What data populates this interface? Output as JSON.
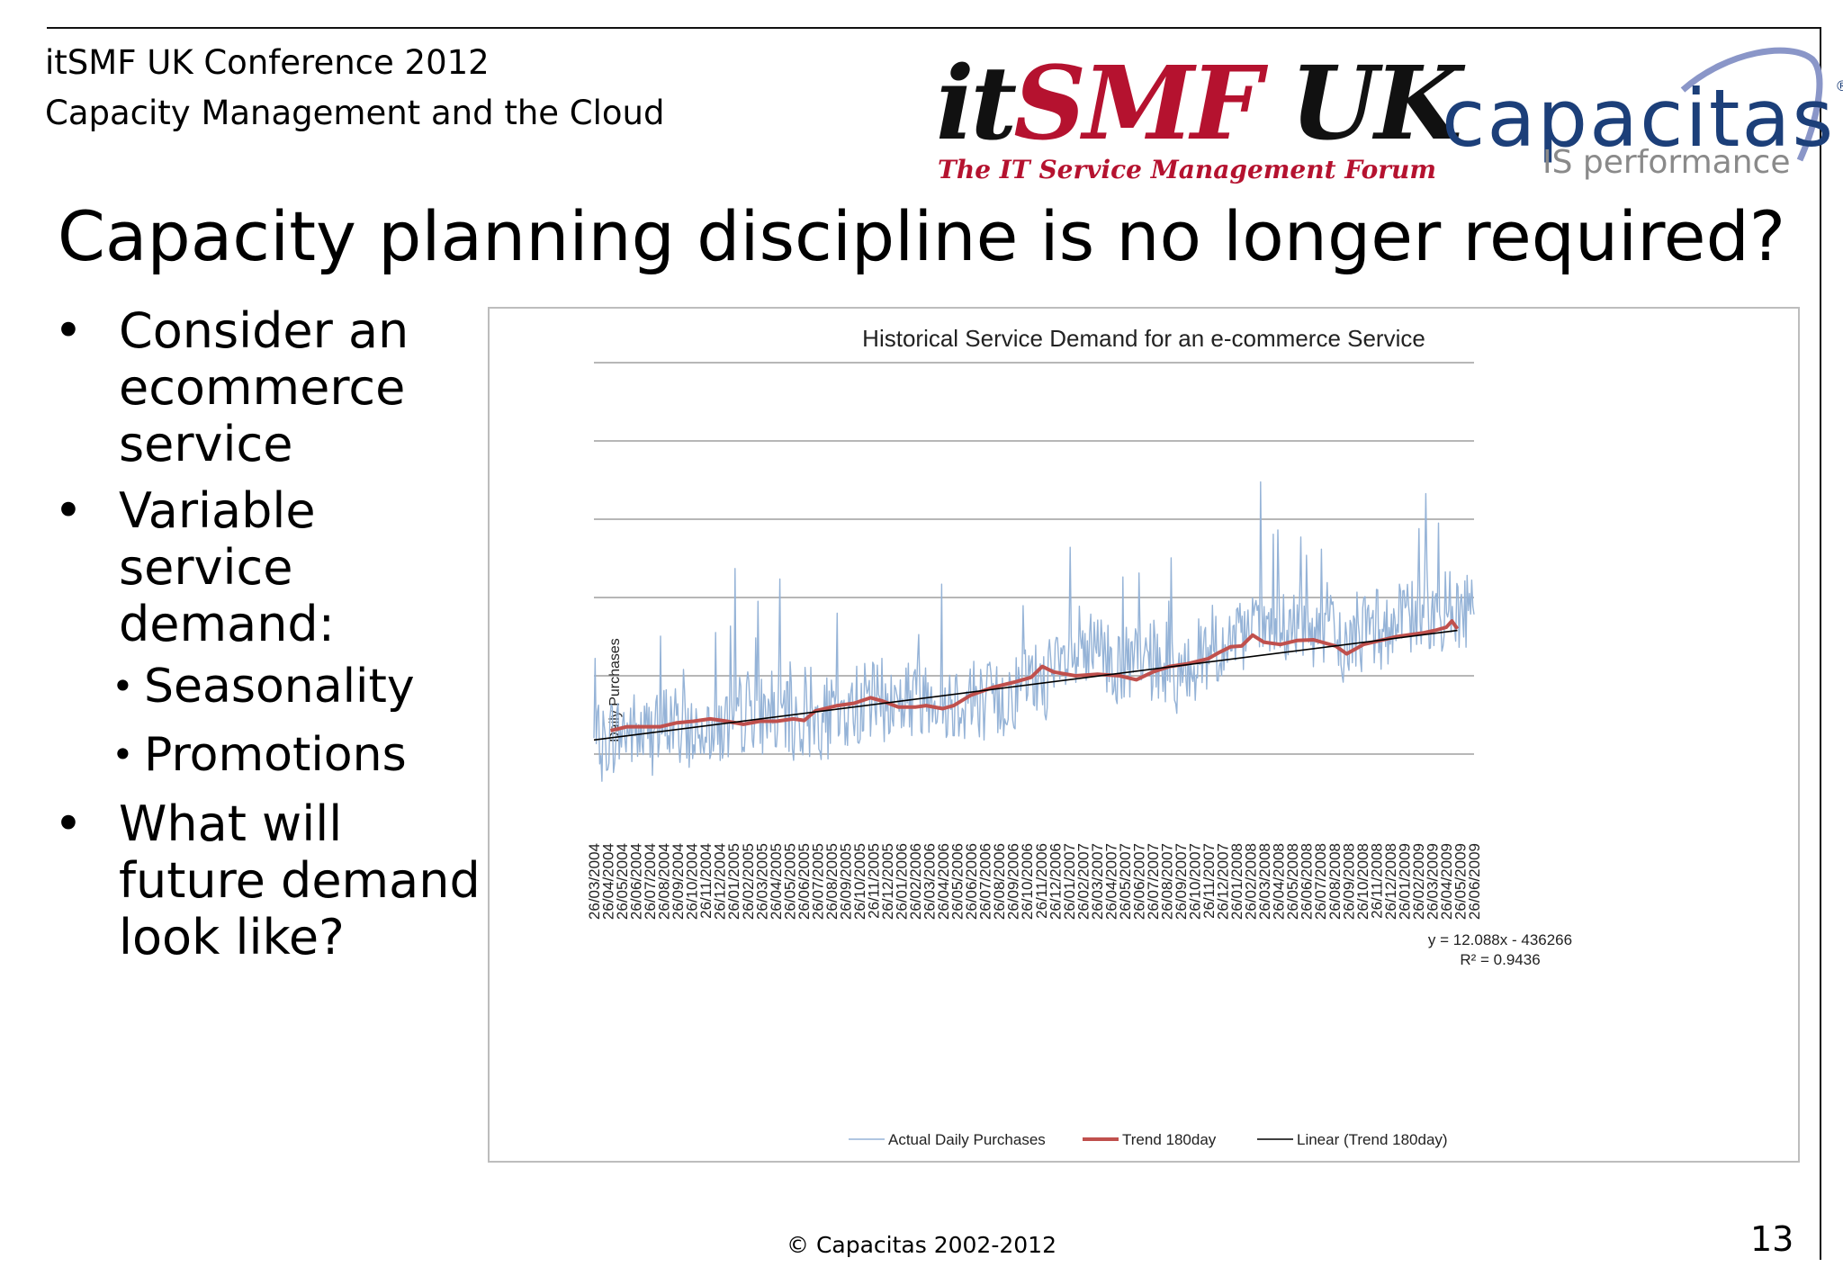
{
  "header": {
    "conference": "itSMF UK Conference 2012",
    "talk_title": "Capacity Management and the Cloud"
  },
  "logos": {
    "itsmf": {
      "part1": "it",
      "part2": "SMF",
      "part3": " UK",
      "tagline": "The IT Service Management Forum"
    },
    "capacitas": {
      "name": "capacitas",
      "trademark": "®",
      "tagline": "IS performance"
    }
  },
  "slide": {
    "title": "Capacity planning discipline is no longer required?",
    "bullets": [
      {
        "text": "Consider an ecommerce service"
      },
      {
        "text": "Variable service demand:"
      },
      {
        "text": "What will future demand look like?"
      }
    ],
    "sub_bullets": [
      {
        "text": "Seasonality"
      },
      {
        "text": "Promotions"
      }
    ],
    "bullet_symbol": "•"
  },
  "chart_data": {
    "type": "line",
    "title": "Historical Service Demand for an e-commerce Service",
    "xlabel": "",
    "ylabel": "Daily Purchases",
    "y_tick_labels_shown": false,
    "grid": true,
    "x_tick_labels": [
      "26/03/2004",
      "26/04/2004",
      "26/05/2004",
      "26/06/2004",
      "26/07/2004",
      "26/08/2004",
      "26/09/2004",
      "26/10/2004",
      "26/11/2004",
      "26/12/2004",
      "26/01/2005",
      "26/02/2005",
      "26/03/2005",
      "26/04/2005",
      "26/05/2005",
      "26/06/2005",
      "26/07/2005",
      "26/08/2005",
      "26/09/2005",
      "26/10/2005",
      "26/11/2005",
      "26/12/2005",
      "26/01/2006",
      "26/02/2006",
      "26/03/2006",
      "26/04/2006",
      "26/05/2006",
      "26/06/2006",
      "26/07/2006",
      "26/08/2006",
      "26/09/2006",
      "26/10/2006",
      "26/11/2006",
      "26/12/2006",
      "26/01/2007",
      "26/02/2007",
      "26/03/2007",
      "26/04/2007",
      "26/05/2007",
      "26/06/2007",
      "26/07/2007",
      "26/08/2007",
      "26/09/2007",
      "26/10/2007",
      "26/11/2007",
      "26/12/2007",
      "26/01/2008",
      "26/02/2008",
      "26/03/2008",
      "26/04/2008",
      "26/05/2008",
      "26/06/2008",
      "26/07/2008",
      "26/08/2008",
      "26/09/2008",
      "26/10/2008",
      "26/11/2008",
      "26/12/2008",
      "26/01/2009",
      "26/02/2009",
      "26/03/2009",
      "26/04/2009",
      "26/05/2009",
      "26/06/2009"
    ],
    "series": [
      {
        "name": "Actual Daily Purchases",
        "color": "#95b3d7",
        "kind": "daily",
        "note_values": "relative level 0-6 on unlabeled gridlines; monthly average level",
        "monthly_level": [
          1.05,
          1.2,
          1.25,
          1.2,
          1.2,
          1.35,
          1.25,
          1.25,
          1.35,
          1.3,
          1.45,
          1.55,
          1.45,
          1.45,
          1.35,
          1.35,
          1.4,
          1.4,
          1.45,
          1.6,
          1.65,
          1.6,
          1.65,
          1.7,
          1.75,
          1.65,
          1.65,
          1.7,
          1.65,
          1.6,
          1.75,
          1.85,
          1.9,
          1.95,
          2.1,
          2.15,
          2.25,
          2.1,
          2.05,
          2.1,
          2.1,
          2.05,
          1.95,
          2.15,
          2.25,
          2.3,
          2.35,
          2.45,
          2.6,
          2.55,
          2.5,
          2.55,
          2.55,
          2.5,
          2.3,
          2.5,
          2.55,
          2.55,
          2.6,
          2.7,
          2.8,
          2.75,
          2.75,
          2.8
        ]
      },
      {
        "name": "Trend 180day",
        "color": "#c0504d",
        "kind": "moving_average",
        "points": [
          [
            3,
            1.3
          ],
          [
            6,
            1.35
          ],
          [
            9,
            1.35
          ],
          [
            12,
            1.35
          ],
          [
            15,
            1.4
          ],
          [
            18,
            1.42
          ],
          [
            21,
            1.45
          ],
          [
            24,
            1.42
          ],
          [
            27,
            1.38
          ],
          [
            30,
            1.42
          ],
          [
            33,
            1.42
          ],
          [
            36,
            1.45
          ],
          [
            38,
            1.43
          ],
          [
            40,
            1.55
          ],
          [
            44,
            1.62
          ],
          [
            47,
            1.65
          ],
          [
            50,
            1.72
          ],
          [
            52,
            1.68
          ],
          [
            55,
            1.6
          ],
          [
            58,
            1.6
          ],
          [
            60,
            1.62
          ],
          [
            63,
            1.58
          ],
          [
            65,
            1.62
          ],
          [
            68,
            1.75
          ],
          [
            72,
            1.85
          ],
          [
            76,
            1.92
          ],
          [
            79,
            1.98
          ],
          [
            81,
            2.12
          ],
          [
            83,
            2.05
          ],
          [
            87,
            2.0
          ],
          [
            91,
            2.02
          ],
          [
            95,
            2.0
          ],
          [
            98,
            1.95
          ],
          [
            101,
            2.05
          ],
          [
            104,
            2.12
          ],
          [
            107,
            2.15
          ],
          [
            111,
            2.22
          ],
          [
            113,
            2.3
          ],
          [
            115,
            2.37
          ],
          [
            117,
            2.38
          ],
          [
            119,
            2.52
          ],
          [
            121,
            2.43
          ],
          [
            124,
            2.4
          ],
          [
            127,
            2.45
          ],
          [
            130,
            2.46
          ],
          [
            134,
            2.38
          ],
          [
            136,
            2.28
          ],
          [
            139,
            2.4
          ],
          [
            142,
            2.45
          ],
          [
            145,
            2.5
          ],
          [
            148,
            2.53
          ],
          [
            150,
            2.55
          ],
          [
            152,
            2.58
          ],
          [
            154,
            2.62
          ],
          [
            155,
            2.7
          ],
          [
            156,
            2.6
          ]
        ]
      },
      {
        "name": "Linear (Trend 180day)",
        "color": "#000000",
        "kind": "linear_trendline",
        "points": [
          [
            0,
            1.18
          ],
          [
            156,
            2.58
          ]
        ],
        "equation": "y = 12.088x - 436266",
        "r_squared": "R² = 0.9436"
      }
    ],
    "x_range_index": [
      0,
      159
    ],
    "y_range_level": [
      0,
      6
    ],
    "legend_position": "bottom"
  },
  "footer": {
    "copyright": "© Capacitas 2002-2012",
    "page_number": "13"
  }
}
